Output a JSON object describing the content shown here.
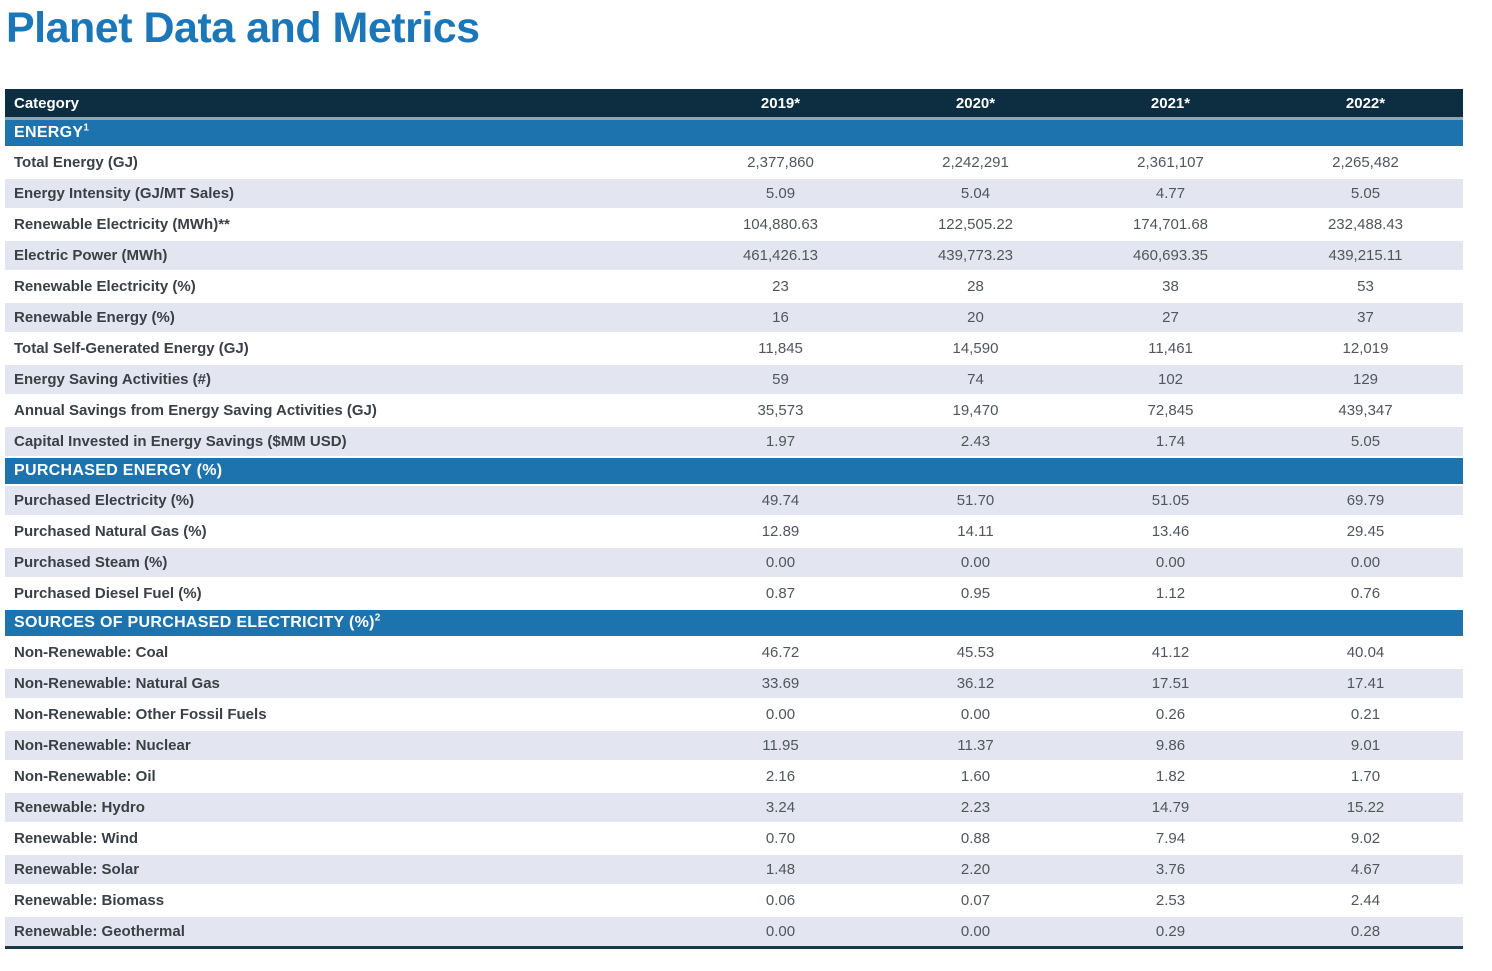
{
  "page": {
    "title": "Planet Data and Metrics"
  },
  "colors": {
    "title_blue": "#1b77b7",
    "header_navy": "#0d2e40",
    "section_blue": "#1d73ae",
    "divider_gray": "#8ea6b4",
    "row_shaded": "#e3e6f0",
    "bottom_border": "#16394b",
    "label_text": "#3a4046",
    "value_text": "#50565c"
  },
  "table": {
    "header": {
      "category_label": "Category",
      "years": [
        "2019*",
        "2020*",
        "2021*",
        "2022*"
      ]
    },
    "sections": [
      {
        "title": "ENERGY",
        "sup": "1",
        "rows": [
          {
            "label": "Total Energy (GJ)",
            "values": [
              "2,377,860",
              "2,242,291",
              "2,361,107",
              "2,265,482"
            ],
            "shaded": false
          },
          {
            "label": "Energy Intensity (GJ/MT Sales)",
            "values": [
              "5.09",
              "5.04",
              "4.77",
              "5.05"
            ],
            "shaded": true
          },
          {
            "label": "Renewable Electricity (MWh)**",
            "values": [
              "104,880.63",
              "122,505.22",
              "174,701.68",
              "232,488.43"
            ],
            "shaded": false
          },
          {
            "label": "Electric Power (MWh)",
            "values": [
              "461,426.13",
              "439,773.23",
              "460,693.35",
              "439,215.11"
            ],
            "shaded": true
          },
          {
            "label": "Renewable Electricity (%)",
            "values": [
              "23",
              "28",
              "38",
              "53"
            ],
            "shaded": false
          },
          {
            "label": "Renewable Energy (%)",
            "values": [
              "16",
              "20",
              "27",
              "37"
            ],
            "shaded": true
          },
          {
            "label": "Total Self-Generated Energy (GJ)",
            "values": [
              "11,845",
              "14,590",
              "11,461",
              "12,019"
            ],
            "shaded": false
          },
          {
            "label": "Energy Saving Activities (#)",
            "values": [
              "59",
              "74",
              "102",
              "129"
            ],
            "shaded": true
          },
          {
            "label": "Annual Savings from Energy Saving Activities (GJ)",
            "values": [
              "35,573",
              "19,470",
              "72,845",
              "439,347"
            ],
            "shaded": false
          },
          {
            "label": "Capital Invested in Energy Savings ($MM USD)",
            "values": [
              "1.97",
              "2.43",
              "1.74",
              "5.05"
            ],
            "shaded": true
          }
        ]
      },
      {
        "title": "PURCHASED ENERGY (%)",
        "sup": "",
        "rows": [
          {
            "label": "Purchased Electricity (%)",
            "values": [
              "49.74",
              "51.70",
              "51.05",
              "69.79"
            ],
            "shaded": true
          },
          {
            "label": "Purchased Natural Gas (%)",
            "values": [
              "12.89",
              "14.11",
              "13.46",
              "29.45"
            ],
            "shaded": false
          },
          {
            "label": "Purchased Steam (%)",
            "values": [
              "0.00",
              "0.00",
              "0.00",
              "0.00"
            ],
            "shaded": true
          },
          {
            "label": "Purchased Diesel Fuel (%)",
            "values": [
              "0.87",
              "0.95",
              "1.12",
              "0.76"
            ],
            "shaded": false
          }
        ]
      },
      {
        "title": "SOURCES OF PURCHASED ELECTRICITY (%)",
        "sup": "2",
        "rows": [
          {
            "label": "Non-Renewable: Coal",
            "values": [
              "46.72",
              "45.53",
              "41.12",
              "40.04"
            ],
            "shaded": false
          },
          {
            "label": "Non-Renewable: Natural Gas",
            "values": [
              "33.69",
              "36.12",
              "17.51",
              "17.41"
            ],
            "shaded": true
          },
          {
            "label": "Non-Renewable: Other Fossil Fuels",
            "values": [
              "0.00",
              "0.00",
              "0.26",
              "0.21"
            ],
            "shaded": false
          },
          {
            "label": "Non-Renewable: Nuclear",
            "values": [
              "11.95",
              "11.37",
              "9.86",
              "9.01"
            ],
            "shaded": true
          },
          {
            "label": "Non-Renewable: Oil",
            "values": [
              "2.16",
              "1.60",
              "1.82",
              "1.70"
            ],
            "shaded": false
          },
          {
            "label": "Renewable: Hydro",
            "values": [
              "3.24",
              "2.23",
              "14.79",
              "15.22"
            ],
            "shaded": true
          },
          {
            "label": "Renewable: Wind",
            "values": [
              "0.70",
              "0.88",
              "7.94",
              "9.02"
            ],
            "shaded": false
          },
          {
            "label": "Renewable: Solar",
            "values": [
              "1.48",
              "2.20",
              "3.76",
              "4.67"
            ],
            "shaded": true
          },
          {
            "label": "Renewable: Biomass",
            "values": [
              "0.06",
              "0.07",
              "2.53",
              "2.44"
            ],
            "shaded": false
          },
          {
            "label": "Renewable: Geothermal",
            "values": [
              "0.00",
              "0.00",
              "0.29",
              "0.28"
            ],
            "shaded": true
          }
        ]
      }
    ]
  }
}
